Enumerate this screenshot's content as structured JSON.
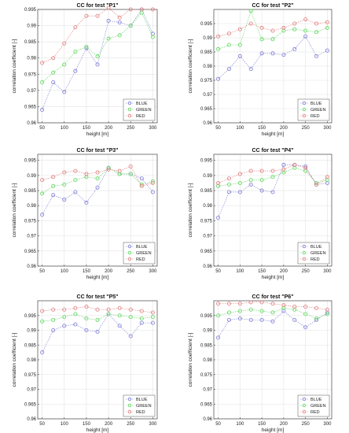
{
  "chart_data": [
    {
      "type": "line",
      "title": "CC for test \"P1\"",
      "xlabel": "height [m]",
      "ylabel": "correlation coefficient [-]",
      "x": [
        50,
        75,
        100,
        125,
        150,
        175,
        200,
        225,
        250,
        275,
        300
      ],
      "xlim": [
        40,
        310
      ],
      "ylim": [
        0.96,
        0.995
      ],
      "xticks": [
        50,
        100,
        150,
        200,
        250,
        300
      ],
      "yticks": [
        0.96,
        0.965,
        0.97,
        0.975,
        0.98,
        0.985,
        0.99,
        0.995
      ],
      "grid": true,
      "legend_position": "bottom-right",
      "series": [
        {
          "name": "BLUE",
          "color": "#7b7bd6",
          "values": [
            0.964,
            0.9725,
            0.9695,
            0.976,
            0.983,
            0.978,
            0.9915,
            0.991,
            0.99,
            0.995,
            0.9875
          ]
        },
        {
          "name": "GREEN",
          "color": "#5ad65a",
          "values": [
            0.9725,
            0.9755,
            0.978,
            0.982,
            0.9835,
            0.9805,
            0.986,
            0.987,
            0.99,
            0.994,
            0.9865
          ]
        },
        {
          "name": "RED",
          "color": "#e07b7b",
          "values": [
            0.9785,
            0.98,
            0.9845,
            0.9895,
            0.993,
            0.993,
            0.9955,
            0.9925,
            0.995,
            0.995,
            0.995
          ]
        }
      ]
    },
    {
      "type": "line",
      "title": "CC for test \"P2\"",
      "xlabel": "height [m]",
      "ylabel": "correlation coefficient [-]",
      "x": [
        50,
        75,
        100,
        125,
        150,
        175,
        200,
        225,
        250,
        275,
        300
      ],
      "xlim": [
        40,
        310
      ],
      "ylim": [
        0.96,
        1.0
      ],
      "xticks": [
        50,
        100,
        150,
        200,
        250,
        300
      ],
      "yticks": [
        0.96,
        0.965,
        0.97,
        0.975,
        0.98,
        0.985,
        0.99,
        0.995
      ],
      "grid": true,
      "legend_position": "bottom-right",
      "series": [
        {
          "name": "BLUE",
          "color": "#7b7bd6",
          "values": [
            0.9755,
            0.979,
            0.9835,
            0.979,
            0.9845,
            0.9845,
            0.984,
            0.986,
            0.9905,
            0.9835,
            0.9855
          ]
        },
        {
          "name": "GREEN",
          "color": "#5ad65a",
          "values": [
            0.986,
            0.9875,
            0.9875,
            0.9995,
            0.9895,
            0.9895,
            0.9925,
            0.993,
            0.9925,
            0.992,
            0.9935
          ]
        },
        {
          "name": "RED",
          "color": "#e07b7b",
          "values": [
            0.9905,
            0.9915,
            0.993,
            0.995,
            0.9935,
            0.9925,
            0.9935,
            0.995,
            0.9965,
            0.995,
            0.9955
          ]
        }
      ]
    },
    {
      "type": "line",
      "title": "CC for test \"P3\"",
      "xlabel": "height [m]",
      "ylabel": "correlation coefficient [-]",
      "x": [
        50,
        75,
        100,
        125,
        150,
        175,
        200,
        225,
        250,
        275,
        300
      ],
      "xlim": [
        40,
        310
      ],
      "ylim": [
        0.96,
        0.997
      ],
      "xticks": [
        50,
        100,
        150,
        200,
        250,
        300
      ],
      "yticks": [
        0.96,
        0.965,
        0.97,
        0.975,
        0.98,
        0.985,
        0.99,
        0.995
      ],
      "grid": true,
      "legend_position": "bottom-right",
      "series": [
        {
          "name": "BLUE",
          "color": "#7b7bd6",
          "values": [
            0.977,
            0.9835,
            0.982,
            0.9845,
            0.981,
            0.986,
            0.9925,
            0.9905,
            0.9905,
            0.989,
            0.9845
          ]
        },
        {
          "name": "GREEN",
          "color": "#5ad65a",
          "values": [
            0.984,
            0.9865,
            0.987,
            0.9885,
            0.9895,
            0.989,
            0.9925,
            0.9905,
            0.9905,
            0.987,
            0.988
          ]
        },
        {
          "name": "RED",
          "color": "#e07b7b",
          "values": [
            0.9885,
            0.9895,
            0.991,
            0.9915,
            0.9905,
            0.991,
            0.992,
            0.9915,
            0.993,
            0.9865,
            0.9875
          ]
        }
      ]
    },
    {
      "type": "line",
      "title": "CC for test \"P4\"",
      "xlabel": "height [m]",
      "ylabel": "correlation coefficient [-]",
      "x": [
        50,
        75,
        100,
        125,
        150,
        175,
        200,
        225,
        250,
        275,
        300
      ],
      "xlim": [
        40,
        310
      ],
      "ylim": [
        0.96,
        0.997
      ],
      "xticks": [
        50,
        100,
        150,
        200,
        250,
        300
      ],
      "yticks": [
        0.96,
        0.965,
        0.97,
        0.975,
        0.98,
        0.985,
        0.99,
        0.995
      ],
      "grid": true,
      "legend_position": "bottom-right",
      "series": [
        {
          "name": "BLUE",
          "color": "#7b7bd6",
          "values": [
            0.976,
            0.9845,
            0.9845,
            0.987,
            0.985,
            0.9845,
            0.9935,
            0.9935,
            0.993,
            0.987,
            0.9875
          ]
        },
        {
          "name": "GREEN",
          "color": "#5ad65a",
          "values": [
            0.9865,
            0.987,
            0.9875,
            0.9885,
            0.9885,
            0.9895,
            0.991,
            0.9925,
            0.9915,
            0.9875,
            0.9885
          ]
        },
        {
          "name": "RED",
          "color": "#e07b7b",
          "values": [
            0.9875,
            0.989,
            0.9905,
            0.9915,
            0.9915,
            0.9915,
            0.992,
            0.9935,
            0.9925,
            0.987,
            0.9895
          ]
        }
      ]
    },
    {
      "type": "line",
      "title": "CC for test \"P5\"",
      "xlabel": "height [m]",
      "ylabel": "correlation coefficient [-]",
      "x": [
        50,
        75,
        100,
        125,
        150,
        175,
        200,
        225,
        250,
        275,
        300
      ],
      "xlim": [
        40,
        310
      ],
      "ylim": [
        0.96,
        1.0
      ],
      "xticks": [
        50,
        100,
        150,
        200,
        250,
        300
      ],
      "yticks": [
        0.96,
        0.965,
        0.97,
        0.975,
        0.98,
        0.985,
        0.99,
        0.995
      ],
      "grid": true,
      "legend_position": "bottom-right",
      "series": [
        {
          "name": "BLUE",
          "color": "#7b7bd6",
          "values": [
            0.9825,
            0.99,
            0.9915,
            0.992,
            0.99,
            0.9895,
            0.9955,
            0.9915,
            0.988,
            0.9925,
            0.9925
          ]
        },
        {
          "name": "GREEN",
          "color": "#5ad65a",
          "values": [
            0.993,
            0.9935,
            0.9945,
            0.9955,
            0.994,
            0.9935,
            0.9955,
            0.995,
            0.9945,
            0.994,
            0.9945
          ]
        },
        {
          "name": "RED",
          "color": "#e07b7b",
          "values": [
            0.9965,
            0.997,
            0.997,
            0.9975,
            0.998,
            0.997,
            0.997,
            0.9975,
            0.997,
            0.9965,
            0.996
          ]
        }
      ]
    },
    {
      "type": "line",
      "title": "CC for test \"P6\"",
      "xlabel": "height [m]",
      "ylabel": "correlation coefficient [-]",
      "x": [
        50,
        75,
        100,
        125,
        150,
        175,
        200,
        225,
        250,
        275,
        300
      ],
      "xlim": [
        40,
        310
      ],
      "ylim": [
        0.96,
        1.0
      ],
      "xticks": [
        50,
        100,
        150,
        200,
        250,
        300
      ],
      "yticks": [
        0.96,
        0.965,
        0.97,
        0.975,
        0.98,
        0.985,
        0.99,
        0.995
      ],
      "grid": true,
      "legend_position": "bottom-right",
      "series": [
        {
          "name": "BLUE",
          "color": "#7b7bd6",
          "values": [
            0.9875,
            0.9935,
            0.994,
            0.9935,
            0.9935,
            0.993,
            0.9965,
            0.9935,
            0.991,
            0.9935,
            0.996
          ]
        },
        {
          "name": "GREEN",
          "color": "#5ad65a",
          "values": [
            0.995,
            0.996,
            0.9965,
            0.997,
            0.9965,
            0.996,
            0.9975,
            0.997,
            0.9955,
            0.994,
            0.9955
          ]
        },
        {
          "name": "RED",
          "color": "#e07b7b",
          "values": [
            0.999,
            0.999,
            0.999,
            0.9995,
            0.9995,
            0.999,
            0.9985,
            0.998,
            0.998,
            0.9975,
            0.997
          ]
        }
      ]
    }
  ]
}
